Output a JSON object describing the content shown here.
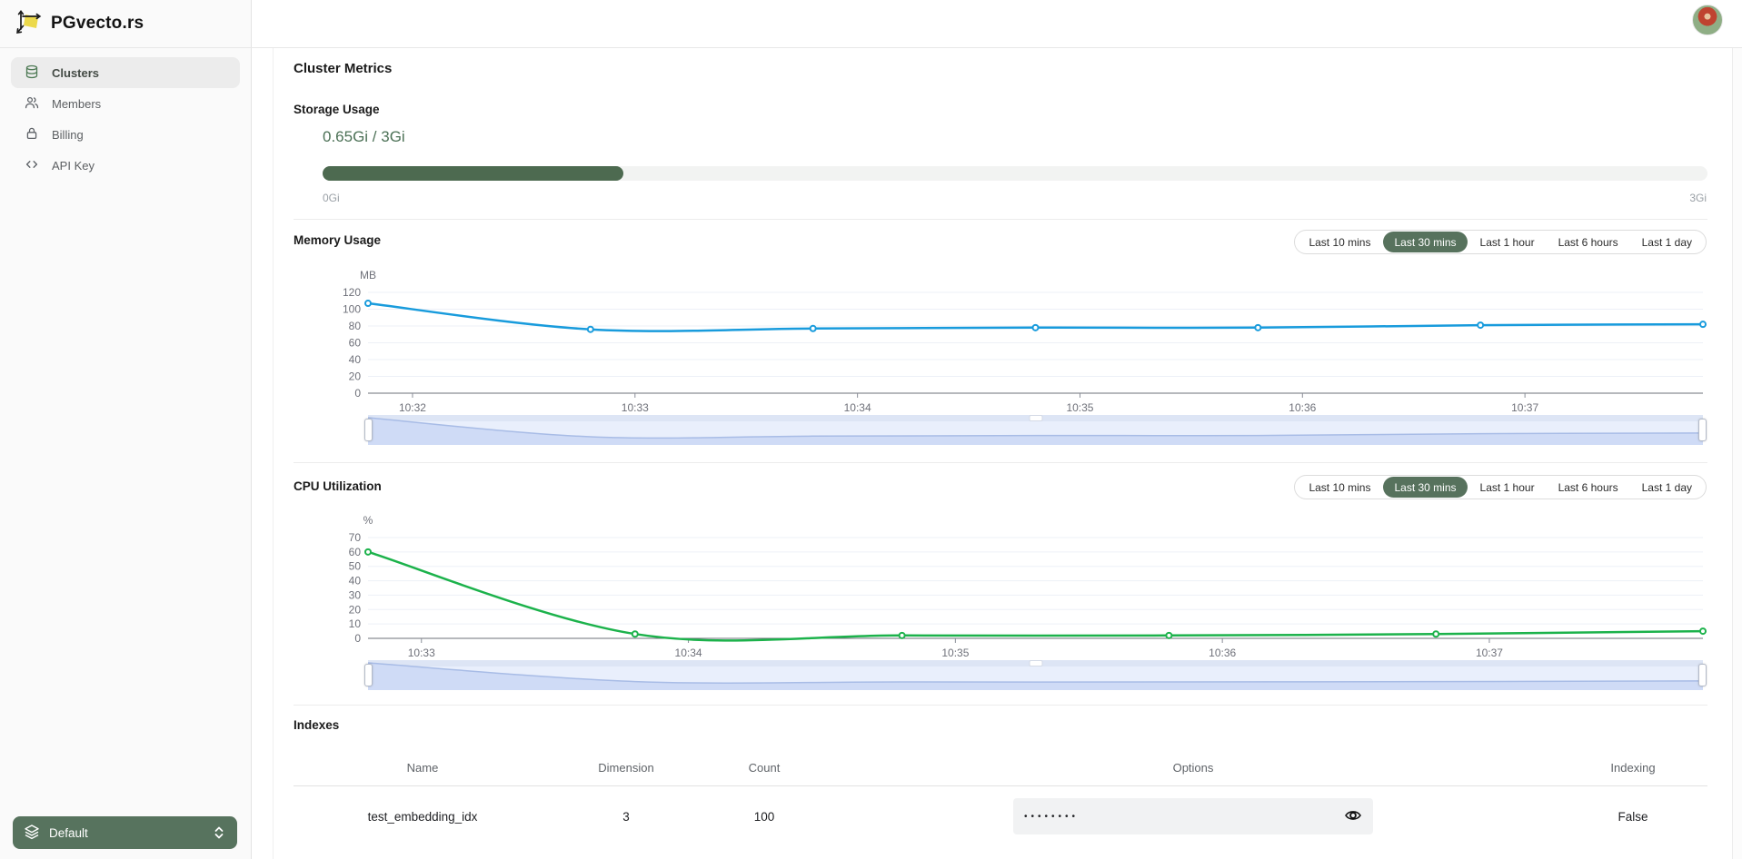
{
  "brand": {
    "name": "PGvecto.rs"
  },
  "sidebar": {
    "items": [
      {
        "label": "Clusters",
        "icon": "database-icon",
        "active": true
      },
      {
        "label": "Members",
        "icon": "members-icon",
        "active": false
      },
      {
        "label": "Billing",
        "icon": "lock-icon",
        "active": false
      },
      {
        "label": "API Key",
        "icon": "code-icon",
        "active": false
      }
    ],
    "cluster_selector": {
      "label": "Default",
      "icon": "layers-icon",
      "chevron_icon": "chevron-up-down-icon",
      "color": "#57735e"
    }
  },
  "page": {
    "title": "Cluster Metrics"
  },
  "storage": {
    "title": "Storage Usage",
    "usage": "0.65Gi / 3Gi",
    "percent_filled": 21.7,
    "scale_min": "0Gi",
    "scale_max": "3Gi",
    "bar_color": "#4d6a50",
    "usage_text_color": "#4c7156"
  },
  "time_range_selector": {
    "options": [
      "Last 10 mins",
      "Last 30 mins",
      "Last 1 hour",
      "Last 6 hours",
      "Last 1 day"
    ],
    "selected": "Last 30 mins",
    "selected_color": "#57725d"
  },
  "chart_data": [
    {
      "id": "memory",
      "type": "line",
      "title": "Memory Usage",
      "unit": "MB",
      "color": "#189bdc",
      "x": [
        631.8,
        632.8,
        633.8,
        634.8,
        635.8,
        636.8,
        637.8
      ],
      "y": [
        107,
        76,
        77,
        78,
        78,
        81,
        82
      ],
      "x_domain": [
        631.8,
        637.8
      ],
      "xticks": [
        {
          "v": 632,
          "label": "10:32"
        },
        {
          "v": 633,
          "label": "10:33"
        },
        {
          "v": 634,
          "label": "10:34"
        },
        {
          "v": 635,
          "label": "10:35"
        },
        {
          "v": 636,
          "label": "10:36"
        },
        {
          "v": 637,
          "label": "10:37"
        }
      ],
      "ylim": [
        0,
        120
      ],
      "ystep": 20,
      "grid": true,
      "legend": false,
      "navigator": true
    },
    {
      "id": "cpu",
      "type": "line",
      "title": "CPU Utilization",
      "unit": "%",
      "color": "#1cb24b",
      "x": [
        632.8,
        633.8,
        634.8,
        635.8,
        636.8,
        637.8
      ],
      "y": [
        60,
        3,
        2,
        2,
        3,
        5
      ],
      "x_domain": [
        632.8,
        637.8
      ],
      "xticks": [
        {
          "v": 633,
          "label": "10:33"
        },
        {
          "v": 634,
          "label": "10:34"
        },
        {
          "v": 635,
          "label": "10:35"
        },
        {
          "v": 636,
          "label": "10:36"
        },
        {
          "v": 637,
          "label": "10:37"
        }
      ],
      "ylim": [
        0,
        70
      ],
      "ystep": 10,
      "grid": true,
      "legend": false,
      "navigator": true
    }
  ],
  "indexes": {
    "title": "Indexes",
    "columns": [
      "Name",
      "Dimension",
      "Count",
      "Options",
      "Indexing"
    ],
    "rows": [
      {
        "name": "test_embedding_idx",
        "dimension": "3",
        "count": "100",
        "options_masked": "••••••••",
        "options_reveal_icon": "eye-icon",
        "indexing": "False"
      }
    ]
  }
}
